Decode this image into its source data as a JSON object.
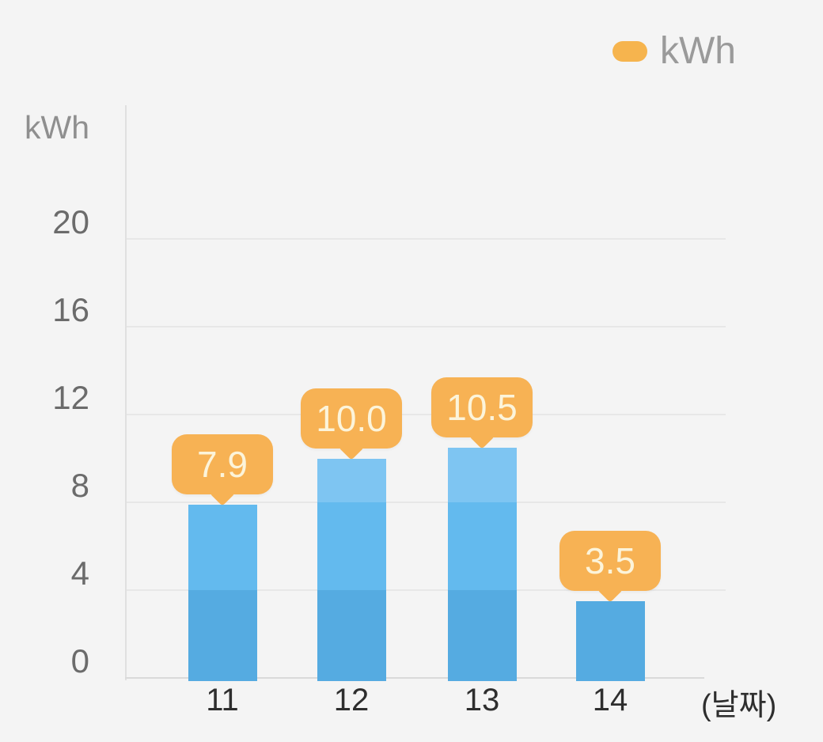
{
  "page": {
    "background_color": "#f4f4f4"
  },
  "legend": {
    "label": "kWh",
    "swatch_color": "#f6b44e"
  },
  "chart_data": {
    "type": "bar",
    "title": "",
    "categories": [
      "11",
      "12",
      "13",
      "14"
    ],
    "values": [
      7.9,
      10.0,
      10.5,
      3.5
    ],
    "value_labels": [
      "7.9",
      "10.0",
      "10.5",
      "3.5"
    ],
    "series": [
      {
        "name": "kWh",
        "values": [
          7.9,
          10.0,
          10.5,
          3.5
        ]
      }
    ],
    "ylabel": "kWh",
    "xlabel": "(날짜)",
    "yticks": [
      0,
      4,
      8,
      12,
      16,
      20
    ],
    "ylim": [
      0,
      26
    ],
    "grid": true,
    "legend_position": "top-right",
    "colors": {
      "bar_band_colors_bottom_to_top": [
        "#55abe1",
        "#63baee",
        "#7ec5f2"
      ],
      "band_step_kwh": 4,
      "callout_background": "#f7b254",
      "callout_text": "#fcf4da",
      "grid_color": "#e7e7e7",
      "axis_color": "#e0e0e0",
      "y_tick_color": "#6b6b6b",
      "x_tick_color": "#2e2e2e",
      "unit_label_color": "#8f8f8f",
      "legend_text_color": "#9a9a9a"
    }
  }
}
